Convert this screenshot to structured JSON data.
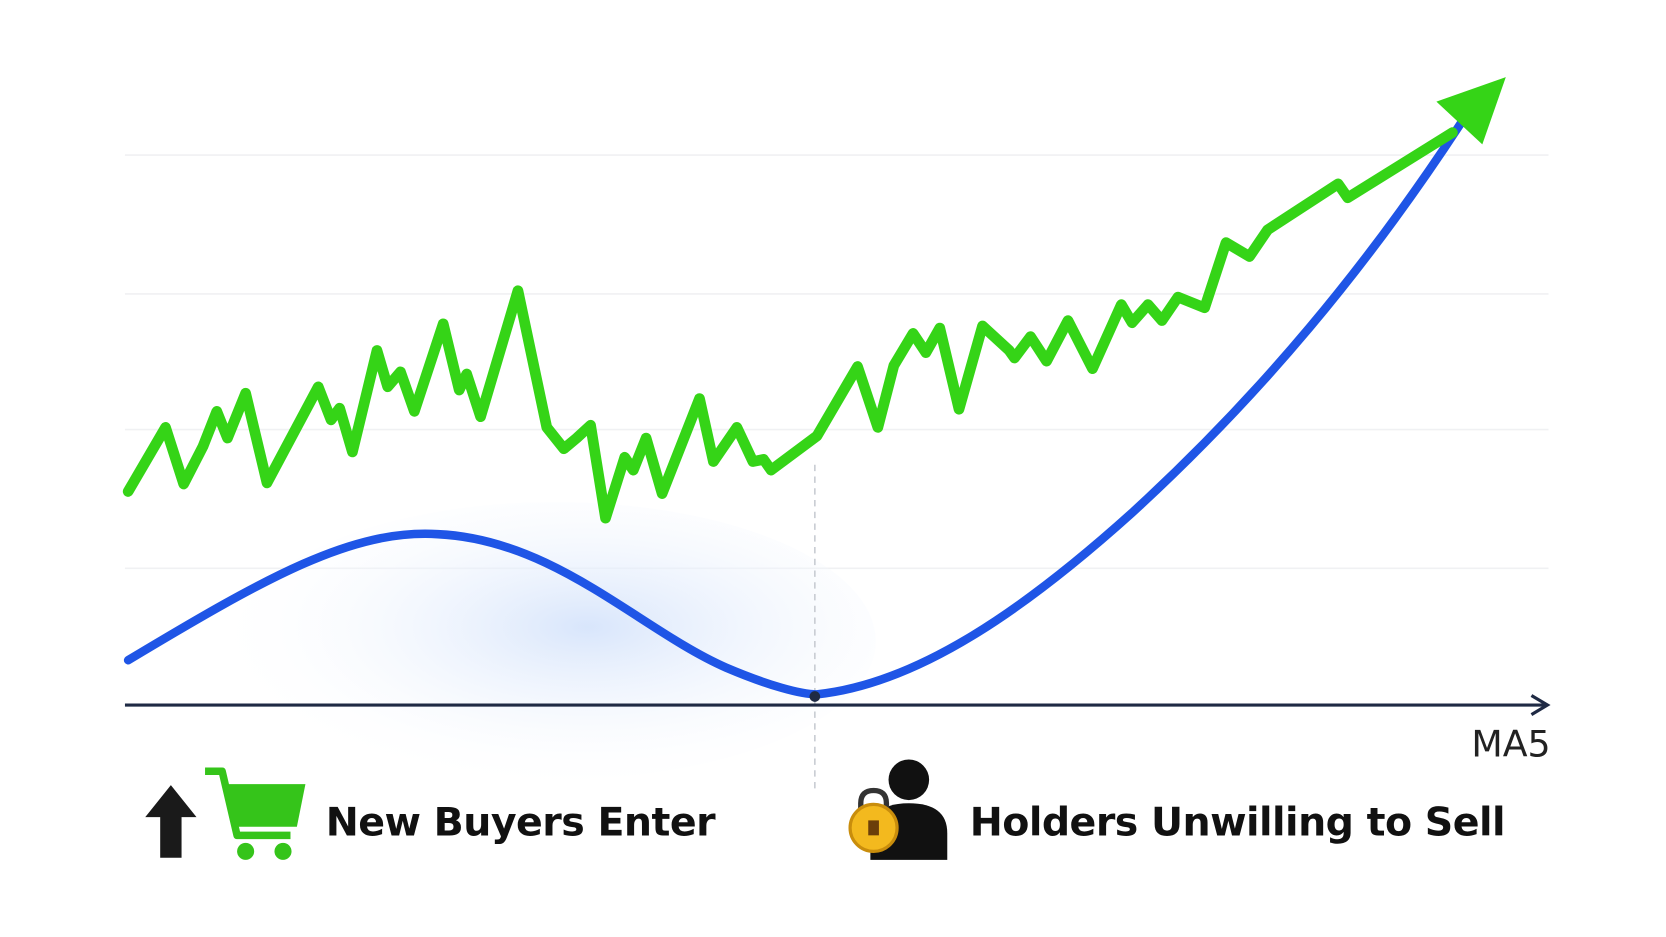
{
  "labels": {
    "axis_label": "MA5",
    "buyers_caption": "New Buyers Enter",
    "holders_caption": "Holders Unwilling to Sell"
  }
}
